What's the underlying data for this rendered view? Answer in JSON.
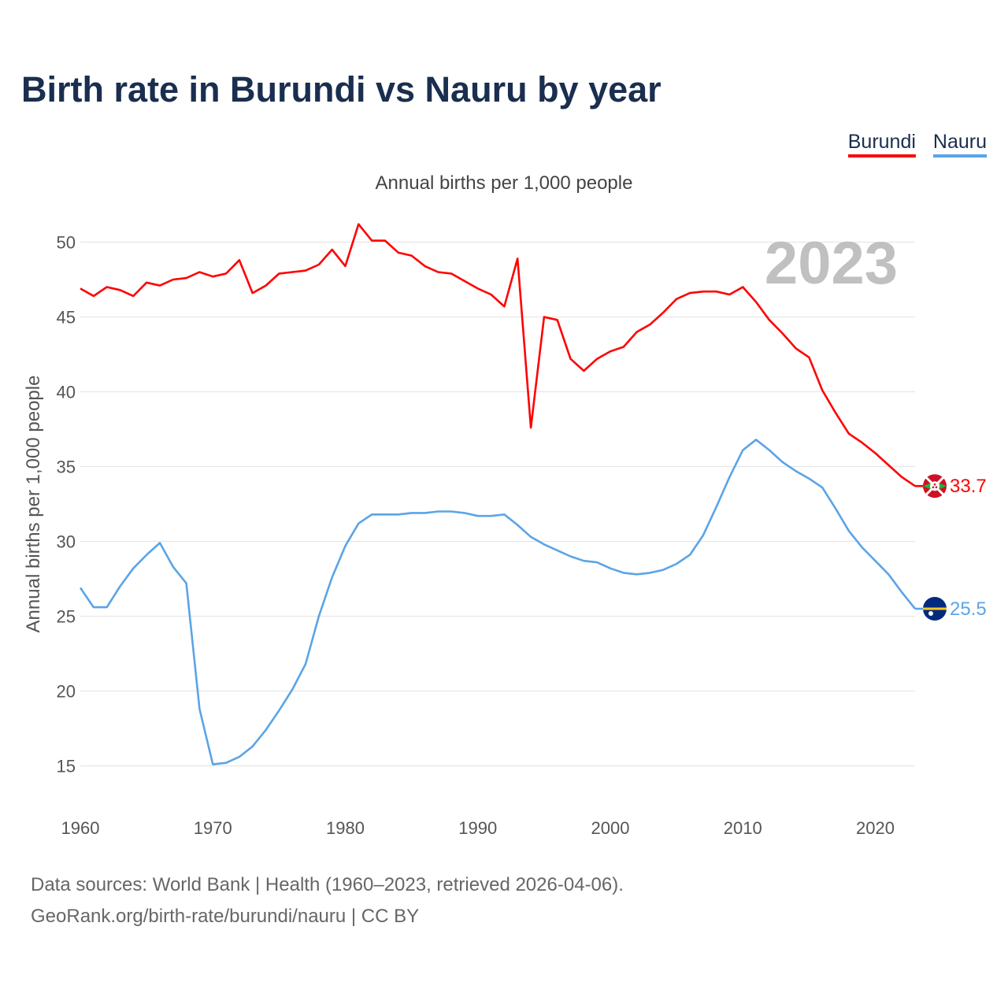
{
  "colors": {
    "title": "#1a2e4f",
    "burundi": "#ff0000",
    "nauru": "#5ba4e6",
    "grid": "#e6e6e6",
    "year_overlay": "#c0c0c0"
  },
  "chart_data": {
    "type": "line",
    "title": "Birth rate in Burundi vs Nauru by year",
    "subtitle": "Annual births per 1,000 people",
    "ylabel": "Annual births per 1,000 people",
    "xlabel": "",
    "xlim": [
      1960,
      2023
    ],
    "ylim": [
      12.5,
      52.5
    ],
    "x_ticks": [
      1960,
      1970,
      1980,
      1990,
      2000,
      2010,
      2020
    ],
    "y_ticks": [
      15,
      20,
      25,
      30,
      35,
      40,
      45,
      50
    ],
    "grid": true,
    "legend_position": "top-right",
    "current_year_label": "2023",
    "x": [
      1960,
      1961,
      1962,
      1963,
      1964,
      1965,
      1966,
      1967,
      1968,
      1969,
      1970,
      1971,
      1972,
      1973,
      1974,
      1975,
      1976,
      1977,
      1978,
      1979,
      1980,
      1981,
      1982,
      1983,
      1984,
      1985,
      1986,
      1987,
      1988,
      1989,
      1990,
      1991,
      1992,
      1993,
      1994,
      1995,
      1996,
      1997,
      1998,
      1999,
      2000,
      2001,
      2002,
      2003,
      2004,
      2005,
      2006,
      2007,
      2008,
      2009,
      2010,
      2011,
      2012,
      2013,
      2014,
      2015,
      2016,
      2017,
      2018,
      2019,
      2020,
      2021,
      2022,
      2023
    ],
    "series": [
      {
        "name": "Burundi",
        "color": "#ff0000",
        "end_label": "33.7",
        "values": [
          46.9,
          46.4,
          47.0,
          46.8,
          46.4,
          47.3,
          47.1,
          47.5,
          47.6,
          48.0,
          47.7,
          47.9,
          48.8,
          46.6,
          47.1,
          47.9,
          48.0,
          48.1,
          48.5,
          49.5,
          48.4,
          51.2,
          50.1,
          50.1,
          49.3,
          49.1,
          48.4,
          48.0,
          47.9,
          47.4,
          46.9,
          46.5,
          45.7,
          48.9,
          37.6,
          45.0,
          44.8,
          42.2,
          41.4,
          42.2,
          42.7,
          43.0,
          44.0,
          44.5,
          45.3,
          46.2,
          46.6,
          46.7,
          46.7,
          46.5,
          47.0,
          46.0,
          44.8,
          43.9,
          42.9,
          42.3,
          40.1,
          38.6,
          37.2,
          36.6,
          35.9,
          35.1,
          34.3,
          33.7
        ]
      },
      {
        "name": "Nauru",
        "color": "#5ba4e6",
        "end_label": "25.5",
        "values": [
          26.9,
          25.6,
          25.6,
          27.0,
          28.2,
          29.1,
          29.9,
          28.3,
          27.2,
          18.8,
          15.1,
          15.2,
          15.6,
          16.3,
          17.4,
          18.7,
          20.1,
          21.8,
          25.0,
          27.6,
          29.7,
          31.2,
          31.8,
          31.8,
          31.8,
          31.9,
          31.9,
          32.0,
          32.0,
          31.9,
          31.7,
          31.7,
          31.8,
          31.1,
          30.3,
          29.8,
          29.4,
          29.0,
          28.7,
          28.6,
          28.2,
          27.9,
          27.8,
          27.9,
          28.1,
          28.5,
          29.1,
          30.4,
          32.3,
          34.3,
          36.1,
          36.8,
          36.1,
          35.3,
          34.7,
          34.2,
          33.6,
          32.2,
          30.7,
          29.6,
          28.7,
          27.8,
          26.6,
          25.5
        ]
      }
    ]
  },
  "legend": {
    "items": [
      {
        "label": "Burundi"
      },
      {
        "label": "Nauru"
      }
    ]
  },
  "source": {
    "line1": "Data sources: World Bank | Health (1960–2023, retrieved 2026-04-06).",
    "line2": "GeoRank.org/birth-rate/burundi/nauru | CC BY"
  },
  "icons": {
    "burundi_flag": "burundi-flag-icon",
    "nauru_flag": "nauru-flag-icon"
  }
}
